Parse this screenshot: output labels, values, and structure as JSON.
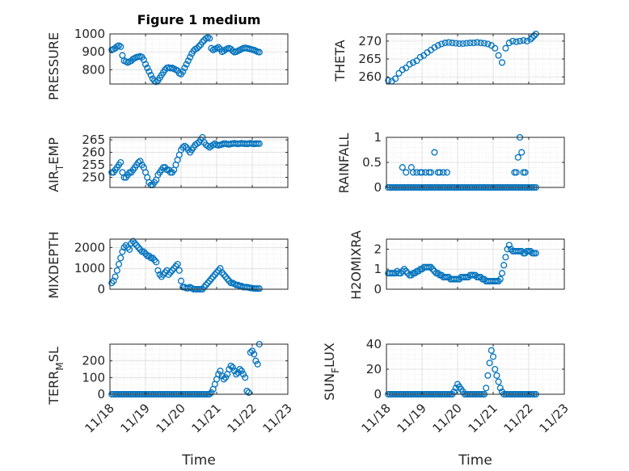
{
  "figure": {
    "title": "Figure 1 medium",
    "xlabel_left": "Time",
    "xlabel_right": "Time",
    "x_tick_labels": [
      "11/18",
      "11/19",
      "11/20",
      "11/21",
      "11/22",
      "11/23"
    ]
  },
  "marker_color": "#0072BD",
  "chart_data": [
    {
      "type": "scatter",
      "id": "pressure",
      "ylabel": "PRESSURE",
      "xlim": [
        0,
        5
      ],
      "ylim": [
        720,
        1000
      ],
      "yticks": [
        800,
        900,
        1000
      ],
      "x": [
        0.05,
        0.1,
        0.15,
        0.2,
        0.25,
        0.3,
        0.35,
        0.4,
        0.45,
        0.5,
        0.55,
        0.6,
        0.65,
        0.7,
        0.75,
        0.8,
        0.85,
        0.9,
        0.95,
        1.0,
        1.05,
        1.1,
        1.15,
        1.2,
        1.25,
        1.3,
        1.35,
        1.4,
        1.45,
        1.5,
        1.55,
        1.6,
        1.65,
        1.7,
        1.75,
        1.8,
        1.85,
        1.9,
        1.95,
        2.0,
        2.05,
        2.1,
        2.15,
        2.2,
        2.25,
        2.3,
        2.35,
        2.4,
        2.45,
        2.5,
        2.55,
        2.6,
        2.65,
        2.7,
        2.75,
        2.8,
        2.85,
        2.9,
        2.95,
        3.0,
        3.05,
        3.1,
        3.15,
        3.2,
        3.25,
        3.3,
        3.35,
        3.4,
        3.45,
        3.5,
        3.55,
        3.6,
        3.65,
        3.7,
        3.75,
        3.8,
        3.85,
        3.9,
        3.95,
        4.0,
        4.05,
        4.1,
        4.15,
        4.2
      ],
      "y": [
        910,
        915,
        920,
        930,
        935,
        928,
        880,
        850,
        845,
        840,
        845,
        850,
        860,
        865,
        870,
        872,
        875,
        870,
        855,
        830,
        810,
        790,
        770,
        750,
        738,
        732,
        740,
        755,
        770,
        785,
        800,
        810,
        812,
        808,
        810,
        805,
        800,
        795,
        780,
        775,
        790,
        810,
        830,
        850,
        870,
        890,
        905,
        915,
        920,
        930,
        940,
        955,
        965,
        975,
        980,
        975,
        920,
        910,
        915,
        920,
        925,
        915,
        900,
        905,
        912,
        918,
        920,
        915,
        905,
        898,
        900,
        905,
        910,
        915,
        920,
        922,
        920,
        918,
        915,
        912,
        910,
        905,
        900,
        898
      ]
    },
    {
      "type": "scatter",
      "id": "theta",
      "ylabel": "THETA",
      "xlim": [
        0,
        5
      ],
      "ylim": [
        258,
        272
      ],
      "yticks": [
        260,
        265,
        270
      ],
      "x": [
        0.05,
        0.15,
        0.25,
        0.35,
        0.45,
        0.55,
        0.65,
        0.75,
        0.85,
        0.95,
        1.05,
        1.15,
        1.25,
        1.35,
        1.45,
        1.55,
        1.65,
        1.75,
        1.85,
        1.95,
        2.05,
        2.15,
        2.25,
        2.35,
        2.45,
        2.55,
        2.65,
        2.75,
        2.85,
        2.95,
        3.05,
        3.15,
        3.25,
        3.35,
        3.45,
        3.55,
        3.65,
        3.75,
        3.85,
        3.95,
        4.05,
        4.1,
        4.15,
        4.2
      ],
      "y": [
        259,
        258.8,
        259.5,
        261,
        262,
        262.5,
        263.5,
        264,
        264.5,
        265.5,
        266,
        266.8,
        267.5,
        268.2,
        268.8,
        269.2,
        269.5,
        269.6,
        269.5,
        269.4,
        269.3,
        269.3,
        269.4,
        269.5,
        269.5,
        269.6,
        269.5,
        269.4,
        269.2,
        268.8,
        268,
        266,
        264,
        268,
        269.5,
        270,
        269.8,
        270,
        270.2,
        270,
        270.5,
        271,
        271.5,
        272
      ]
    },
    {
      "type": "scatter",
      "id": "air_temp",
      "ylabel": "AIR_TEMP",
      "xlim": [
        0,
        5
      ],
      "ylim": [
        246,
        266
      ],
      "yticks": [
        250,
        255,
        260,
        265
      ],
      "x": [
        0.05,
        0.1,
        0.15,
        0.2,
        0.25,
        0.3,
        0.35,
        0.4,
        0.45,
        0.5,
        0.55,
        0.6,
        0.65,
        0.7,
        0.75,
        0.8,
        0.85,
        0.9,
        0.95,
        1.0,
        1.05,
        1.1,
        1.15,
        1.2,
        1.25,
        1.3,
        1.35,
        1.4,
        1.45,
        1.5,
        1.55,
        1.6,
        1.65,
        1.7,
        1.75,
        1.8,
        1.85,
        1.9,
        1.95,
        2.0,
        2.05,
        2.1,
        2.15,
        2.2,
        2.25,
        2.3,
        2.35,
        2.4,
        2.45,
        2.5,
        2.55,
        2.6,
        2.65,
        2.7,
        2.75,
        2.8,
        2.85,
        2.9,
        2.95,
        3.0,
        3.05,
        3.1,
        3.15,
        3.2,
        3.25,
        3.3,
        3.35,
        3.4,
        3.45,
        3.5,
        3.55,
        3.6,
        3.65,
        3.7,
        3.75,
        3.8,
        3.85,
        3.9,
        3.95,
        4.0,
        4.05,
        4.1,
        4.15,
        4.2
      ],
      "y": [
        252,
        252,
        253,
        254,
        255,
        256,
        252,
        250,
        250,
        251,
        252,
        252,
        253,
        254,
        255,
        256,
        256.5,
        255,
        254,
        252,
        250,
        248,
        247,
        247,
        248,
        249,
        251,
        252,
        253,
        254,
        254,
        253,
        253,
        252,
        252,
        253,
        255,
        257,
        259,
        261,
        262,
        262.5,
        262,
        261,
        260,
        261,
        262,
        263,
        263.5,
        264,
        265,
        266,
        264,
        263,
        262.5,
        262,
        262.5,
        263,
        263.5,
        263,
        262.8,
        263,
        263.2,
        263.5,
        263.5,
        263.3,
        263.2,
        263.4,
        263.5,
        263.6,
        263.5,
        263.4,
        263.5,
        263.6,
        263.5,
        263.5,
        263.4,
        263.5,
        263.6,
        263.5,
        263.4,
        263.5,
        263.5,
        263.5
      ]
    },
    {
      "type": "scatter",
      "id": "rainfall",
      "ylabel": "RAINFALL",
      "xlim": [
        0,
        5
      ],
      "ylim": [
        0,
        1
      ],
      "yticks": [
        0,
        0.5,
        1
      ],
      "x": [
        0.05,
        0.1,
        0.15,
        0.2,
        0.25,
        0.3,
        0.35,
        0.4,
        0.45,
        0.5,
        0.55,
        0.6,
        0.65,
        0.7,
        0.75,
        0.8,
        0.85,
        0.9,
        0.95,
        1.0,
        1.05,
        1.1,
        1.15,
        1.2,
        1.25,
        1.3,
        1.35,
        1.4,
        1.45,
        1.5,
        1.55,
        1.6,
        1.65,
        1.7,
        1.75,
        1.8,
        1.85,
        1.9,
        1.95,
        2.0,
        2.05,
        2.1,
        2.15,
        2.2,
        2.25,
        2.3,
        2.35,
        2.4,
        2.45,
        2.5,
        2.55,
        2.6,
        2.65,
        2.7,
        2.75,
        2.8,
        2.85,
        2.9,
        2.95,
        3.0,
        3.05,
        3.1,
        3.15,
        3.2,
        3.25,
        3.3,
        3.35,
        3.4,
        3.45,
        3.5,
        3.55,
        3.6,
        3.65,
        3.7,
        3.75,
        3.8,
        3.85,
        3.9,
        3.95,
        4.0,
        4.05,
        4.1,
        4.15,
        4.2,
        0.45,
        0.55,
        0.7,
        0.75,
        0.85,
        0.95,
        1.0,
        1.1,
        1.2,
        1.25,
        1.35,
        1.45,
        1.5,
        1.6,
        1.7,
        3.6,
        3.65,
        3.7,
        3.75,
        3.8,
        3.85,
        3.9
      ],
      "y": [
        0,
        0,
        0,
        0,
        0,
        0,
        0,
        0,
        0,
        0,
        0,
        0,
        0,
        0,
        0,
        0,
        0,
        0,
        0,
        0,
        0,
        0,
        0,
        0,
        0,
        0,
        0,
        0,
        0,
        0,
        0,
        0,
        0,
        0,
        0,
        0,
        0,
        0,
        0,
        0,
        0,
        0,
        0,
        0,
        0,
        0,
        0,
        0,
        0,
        0,
        0,
        0,
        0,
        0,
        0,
        0,
        0,
        0,
        0,
        0,
        0,
        0,
        0,
        0,
        0,
        0,
        0,
        0,
        0,
        0,
        0,
        0,
        0,
        0,
        0,
        0,
        0,
        0,
        0,
        0,
        0,
        0,
        0,
        0,
        0.4,
        0.3,
        0.4,
        0.3,
        0.3,
        0.3,
        0.3,
        0.3,
        0.3,
        0.3,
        0.7,
        0.3,
        0.3,
        0.3,
        0.3,
        0.3,
        0.3,
        0.6,
        1.0,
        0.7,
        0.3,
        0.3
      ]
    },
    {
      "type": "scatter",
      "id": "mixdepth",
      "ylabel": "MIXDEPTH",
      "xlim": [
        0,
        5
      ],
      "ylim": [
        0,
        2400
      ],
      "yticks": [
        0,
        1000,
        2000
      ],
      "x": [
        0.05,
        0.1,
        0.15,
        0.2,
        0.25,
        0.3,
        0.35,
        0.4,
        0.45,
        0.5,
        0.55,
        0.6,
        0.65,
        0.7,
        0.75,
        0.8,
        0.85,
        0.9,
        0.95,
        1.0,
        1.05,
        1.1,
        1.15,
        1.2,
        1.25,
        1.3,
        1.35,
        1.4,
        1.45,
        1.5,
        1.55,
        1.6,
        1.65,
        1.7,
        1.75,
        1.8,
        1.85,
        1.9,
        1.95,
        2.0,
        2.05,
        2.1,
        2.15,
        2.2,
        2.25,
        2.3,
        2.35,
        2.4,
        2.45,
        2.5,
        2.55,
        2.6,
        2.65,
        2.7,
        2.75,
        2.8,
        2.85,
        2.9,
        2.95,
        3.0,
        3.05,
        3.1,
        3.15,
        3.2,
        3.25,
        3.3,
        3.35,
        3.4,
        3.45,
        3.5,
        3.55,
        3.6,
        3.65,
        3.7,
        3.75,
        3.8,
        3.85,
        3.9,
        3.95,
        4.0,
        4.05,
        4.1,
        4.15,
        4.2
      ],
      "y": [
        300,
        400,
        600,
        900,
        1200,
        1500,
        1800,
        2000,
        2100,
        2000,
        1900,
        2200,
        2300,
        2200,
        2100,
        2000,
        1900,
        1800,
        1800,
        1700,
        1600,
        1600,
        1500,
        1500,
        1400,
        1300,
        900,
        700,
        600,
        700,
        800,
        900,
        700,
        800,
        900,
        1000,
        1100,
        1200,
        900,
        400,
        100,
        100,
        50,
        50,
        100,
        50,
        0,
        0,
        0,
        0,
        0,
        0,
        100,
        200,
        300,
        400,
        500,
        600,
        700,
        800,
        900,
        1000,
        800,
        700,
        600,
        500,
        400,
        300,
        300,
        250,
        200,
        200,
        150,
        150,
        100,
        100,
        100,
        80,
        60,
        50,
        40,
        30,
        30,
        30
      ]
    },
    {
      "type": "scatter",
      "id": "h2omixra",
      "ylabel": "H2OMIXRA",
      "xlim": [
        0,
        5
      ],
      "ylim": [
        0,
        2.5
      ],
      "yticks": [
        0,
        1,
        2
      ],
      "x": [
        0.05,
        0.1,
        0.15,
        0.2,
        0.25,
        0.3,
        0.35,
        0.4,
        0.45,
        0.5,
        0.55,
        0.6,
        0.65,
        0.7,
        0.75,
        0.8,
        0.85,
        0.9,
        0.95,
        1.0,
        1.05,
        1.1,
        1.15,
        1.2,
        1.25,
        1.3,
        1.35,
        1.4,
        1.45,
        1.5,
        1.55,
        1.6,
        1.65,
        1.7,
        1.75,
        1.8,
        1.85,
        1.9,
        1.95,
        2.0,
        2.05,
        2.1,
        2.15,
        2.2,
        2.25,
        2.3,
        2.35,
        2.4,
        2.45,
        2.5,
        2.55,
        2.6,
        2.65,
        2.7,
        2.75,
        2.8,
        2.85,
        2.9,
        2.95,
        3.0,
        3.05,
        3.1,
        3.15,
        3.2,
        3.25,
        3.3,
        3.35,
        3.4,
        3.45,
        3.5,
        3.55,
        3.6,
        3.65,
        3.7,
        3.75,
        3.8,
        3.85,
        3.9,
        3.95,
        4.0,
        4.05,
        4.1,
        4.15,
        4.2
      ],
      "y": [
        0.8,
        0.8,
        0.8,
        0.8,
        0.8,
        0.9,
        0.8,
        0.8,
        0.9,
        1.0,
        0.9,
        0.8,
        0.7,
        0.7,
        0.8,
        0.8,
        0.9,
        0.9,
        1.0,
        1.0,
        1.1,
        1.1,
        1.1,
        1.1,
        1.1,
        1.0,
        0.9,
        0.8,
        0.8,
        0.7,
        0.7,
        0.6,
        0.6,
        0.6,
        0.6,
        0.5,
        0.5,
        0.5,
        0.5,
        0.5,
        0.5,
        0.6,
        0.6,
        0.6,
        0.6,
        0.6,
        0.7,
        0.7,
        0.7,
        0.7,
        0.6,
        0.6,
        0.6,
        0.5,
        0.5,
        0.4,
        0.4,
        0.4,
        0.4,
        0.4,
        0.4,
        0.4,
        0.4,
        0.5,
        0.8,
        1.2,
        1.6,
        2.0,
        2.2,
        2.0,
        1.9,
        1.9,
        1.9,
        1.9,
        1.9,
        1.9,
        1.8,
        1.8,
        1.9,
        1.9,
        1.9,
        1.8,
        1.8,
        1.8
      ]
    },
    {
      "type": "scatter",
      "id": "terr_msl",
      "ylabel": "TERR_MSL",
      "xlim": [
        0,
        5
      ],
      "ylim": [
        0,
        300
      ],
      "yticks": [
        0,
        100,
        200
      ],
      "x": [
        0.05,
        0.1,
        0.15,
        0.2,
        0.25,
        0.3,
        0.35,
        0.4,
        0.45,
        0.5,
        0.55,
        0.6,
        0.65,
        0.7,
        0.75,
        0.8,
        0.85,
        0.9,
        0.95,
        1.0,
        1.05,
        1.1,
        1.15,
        1.2,
        1.25,
        1.3,
        1.35,
        1.4,
        1.45,
        1.5,
        1.55,
        1.6,
        1.65,
        1.7,
        1.75,
        1.8,
        1.85,
        1.9,
        1.95,
        2.0,
        2.05,
        2.1,
        2.15,
        2.2,
        2.25,
        2.3,
        2.35,
        2.4,
        2.45,
        2.5,
        2.55,
        2.6,
        2.65,
        2.7,
        2.75,
        2.8,
        2.85,
        2.9,
        2.95,
        3.0,
        3.05,
        3.1,
        3.15,
        3.2,
        3.25,
        3.3,
        3.35,
        3.4,
        3.45,
        3.5,
        3.55,
        3.6,
        3.65,
        3.7,
        3.75,
        3.8,
        3.85,
        3.9,
        3.95,
        4.0,
        4.05,
        4.1,
        4.15,
        4.2
      ],
      "y": [
        0,
        0,
        0,
        0,
        0,
        0,
        0,
        0,
        0,
        0,
        0,
        0,
        0,
        0,
        0,
        0,
        0,
        0,
        0,
        0,
        0,
        0,
        0,
        0,
        0,
        0,
        0,
        0,
        0,
        0,
        0,
        0,
        0,
        0,
        0,
        0,
        0,
        0,
        0,
        0,
        0,
        0,
        0,
        0,
        0,
        0,
        0,
        0,
        0,
        0,
        0,
        0,
        0,
        0,
        0,
        0,
        10,
        30,
        60,
        90,
        120,
        140,
        110,
        90,
        100,
        120,
        150,
        170,
        160,
        140,
        120,
        130,
        150,
        140,
        120,
        100,
        20,
        10,
        250,
        260,
        240,
        200,
        180,
        300
      ]
    },
    {
      "type": "scatter",
      "id": "sun_flux",
      "ylabel": "SUN_FLUX",
      "xlim": [
        0,
        5
      ],
      "ylim": [
        0,
        40
      ],
      "yticks": [
        0,
        20,
        40
      ],
      "x": [
        0.05,
        0.1,
        0.15,
        0.2,
        0.25,
        0.3,
        0.35,
        0.4,
        0.45,
        0.5,
        0.55,
        0.6,
        0.65,
        0.7,
        0.75,
        0.8,
        0.85,
        0.9,
        0.95,
        1.0,
        1.05,
        1.1,
        1.15,
        1.2,
        1.25,
        1.3,
        1.35,
        1.4,
        1.45,
        1.5,
        1.55,
        1.6,
        1.65,
        1.7,
        1.75,
        1.8,
        1.85,
        1.9,
        1.95,
        2.0,
        2.05,
        2.1,
        2.15,
        2.2,
        2.25,
        2.3,
        2.35,
        2.4,
        2.45,
        2.5,
        2.55,
        2.6,
        2.65,
        2.7,
        2.75,
        2.8,
        2.85,
        2.9,
        2.95,
        3.0,
        3.05,
        3.1,
        3.15,
        3.2,
        3.25,
        3.3,
        3.35,
        3.4,
        3.45,
        3.5,
        3.55,
        3.6,
        3.65,
        3.7,
        3.75,
        3.8,
        3.85,
        3.9,
        3.95,
        4.0,
        4.05,
        4.1,
        4.15,
        4.2
      ],
      "y": [
        0,
        0,
        0,
        0,
        0,
        0,
        0,
        0,
        0,
        0,
        0,
        0,
        0,
        0,
        0,
        0,
        0,
        0,
        0,
        0,
        0,
        0,
        0,
        0,
        0,
        0,
        0,
        0,
        0,
        0,
        0,
        0,
        0,
        0,
        0,
        0,
        0,
        2,
        5,
        8,
        6,
        4,
        2,
        0,
        0,
        0,
        0,
        0,
        0,
        0,
        0,
        0,
        0,
        0,
        0,
        5,
        15,
        25,
        35,
        30,
        20,
        15,
        10,
        5,
        2,
        0,
        0,
        0,
        0,
        0,
        0,
        0,
        0,
        0,
        0,
        0,
        0,
        0,
        0,
        0,
        0,
        0,
        0,
        0
      ]
    }
  ]
}
